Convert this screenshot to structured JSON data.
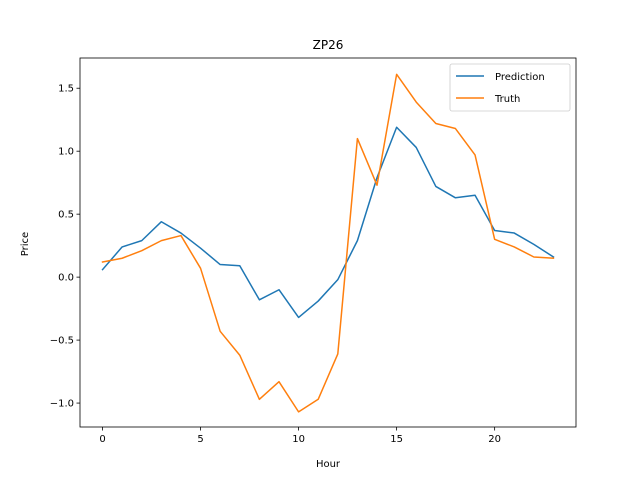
{
  "chart_data": {
    "type": "line",
    "title": "ZP26",
    "xlabel": "Hour",
    "ylabel": "Price",
    "xlim": [
      -1.15,
      24.15
    ],
    "ylim": [
      -1.19,
      1.74
    ],
    "xticks": [
      0,
      5,
      10,
      15,
      20
    ],
    "yticks": [
      -1.0,
      -0.5,
      0.0,
      0.5,
      1.0,
      1.5
    ],
    "ytick_labels": [
      "−1.0",
      "−0.5",
      "0.0",
      "0.5",
      "1.0",
      "1.5"
    ],
    "grid": false,
    "legend_position": "top-right",
    "x": [
      0,
      1,
      2,
      3,
      4,
      5,
      6,
      7,
      8,
      9,
      10,
      11,
      12,
      13,
      14,
      15,
      16,
      17,
      18,
      19,
      20,
      21,
      22,
      23
    ],
    "series": [
      {
        "name": "Prediction",
        "color": "#1f77b4",
        "values": [
          0.06,
          0.24,
          0.29,
          0.44,
          0.35,
          0.23,
          0.1,
          0.09,
          -0.18,
          -0.1,
          -0.32,
          -0.19,
          -0.02,
          0.29,
          0.79,
          1.19,
          1.03,
          0.72,
          0.63,
          0.65,
          0.37,
          0.35,
          0.26,
          0.16
        ]
      },
      {
        "name": "Truth",
        "color": "#ff7f0e",
        "values": [
          0.12,
          0.15,
          0.21,
          0.29,
          0.33,
          0.07,
          -0.43,
          -0.62,
          -0.97,
          -0.83,
          -1.07,
          -0.97,
          -0.61,
          1.1,
          0.73,
          1.61,
          1.39,
          1.22,
          1.18,
          0.97,
          0.3,
          0.24,
          0.16,
          0.15
        ]
      }
    ]
  }
}
